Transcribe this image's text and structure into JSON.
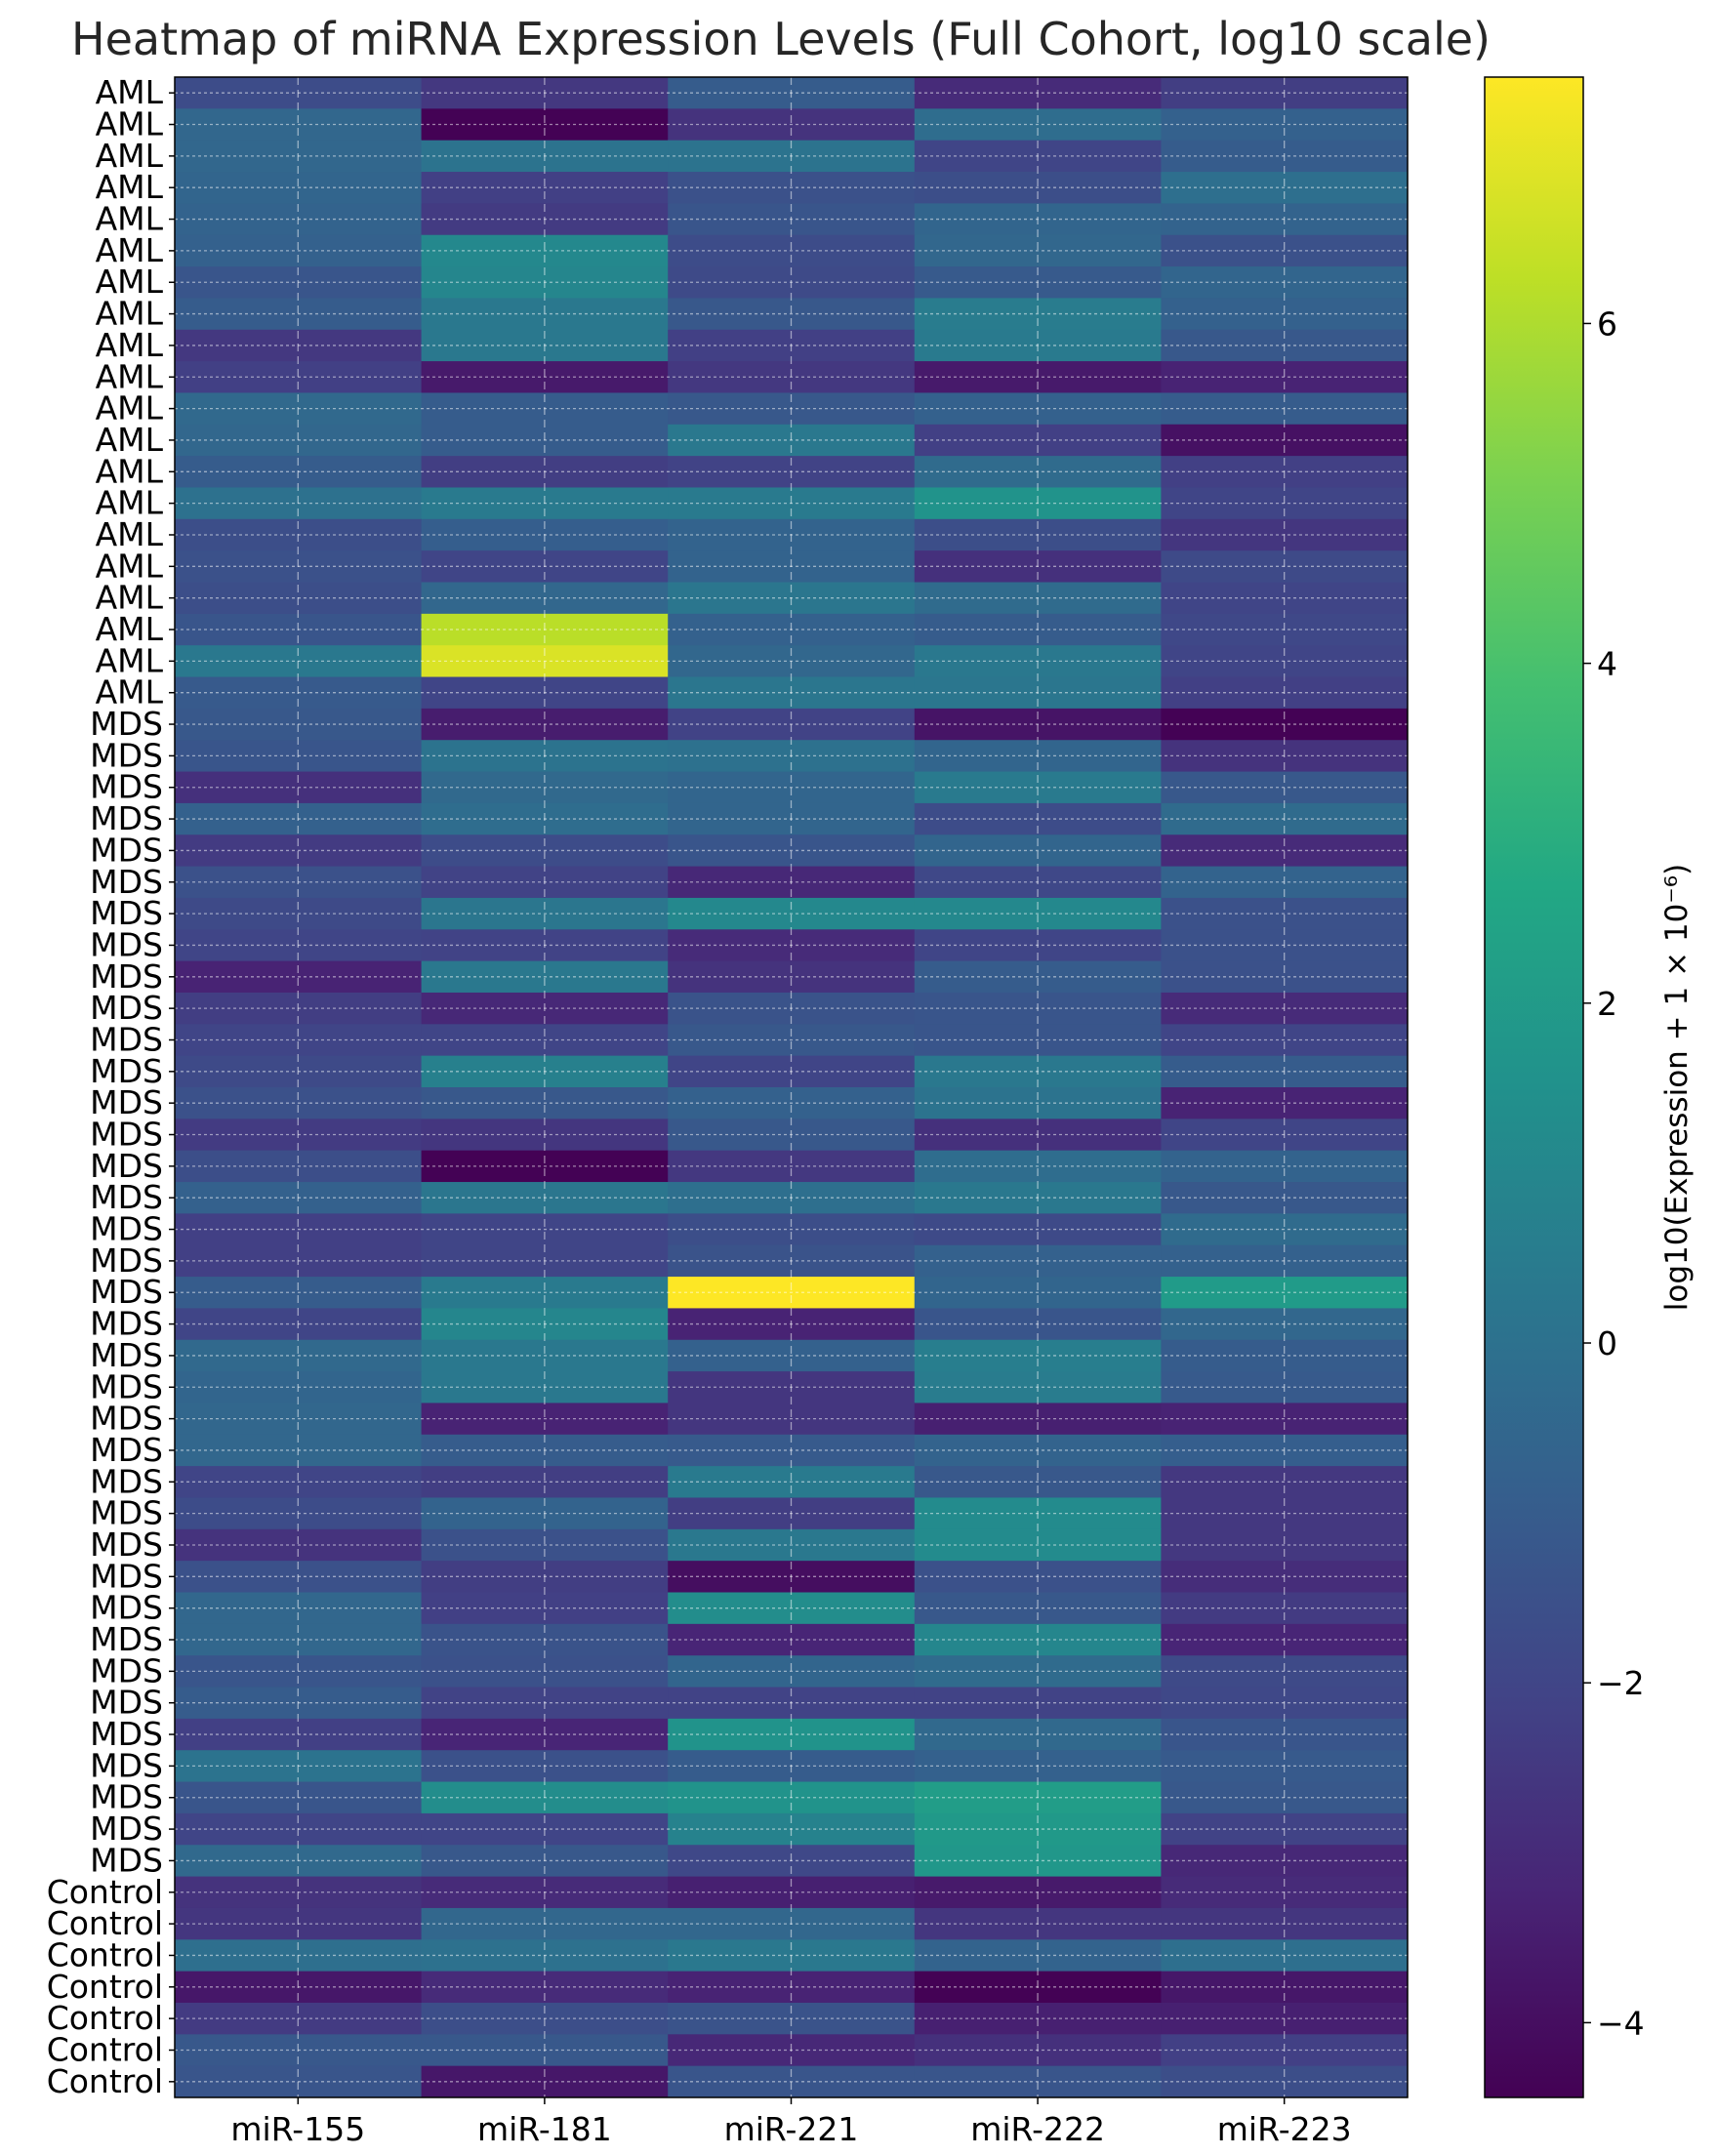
{
  "chart_data": {
    "type": "heatmap",
    "title": "Heatmap of miRNA Expression Levels (Full Cohort, log10 scale)",
    "xlabel": "",
    "ylabel": "",
    "columns": [
      "miR-155",
      "miR-181",
      "miR-221",
      "miR-222",
      "miR-223"
    ],
    "row_labels": [
      "AML",
      "AML",
      "AML",
      "AML",
      "AML",
      "AML",
      "AML",
      "AML",
      "AML",
      "AML",
      "AML",
      "AML",
      "AML",
      "AML",
      "AML",
      "AML",
      "AML",
      "AML",
      "AML",
      "AML",
      "MDS",
      "MDS",
      "MDS",
      "MDS",
      "MDS",
      "MDS",
      "MDS",
      "MDS",
      "MDS",
      "MDS",
      "MDS",
      "MDS",
      "MDS",
      "MDS",
      "MDS",
      "MDS",
      "MDS",
      "MDS",
      "MDS",
      "MDS",
      "MDS",
      "MDS",
      "MDS",
      "MDS",
      "MDS",
      "MDS",
      "MDS",
      "MDS",
      "MDS",
      "MDS",
      "MDS",
      "MDS",
      "MDS",
      "MDS",
      "MDS",
      "MDS",
      "MDS",
      "Control",
      "Control",
      "Control",
      "Control",
      "Control",
      "Control",
      "Control"
    ],
    "values": [
      [
        -1.7,
        -2.5,
        -1.0,
        -3.0,
        -2.3
      ],
      [
        -0.5,
        -4.4,
        -2.7,
        -0.2,
        -0.8
      ],
      [
        -0.5,
        0.1,
        0.1,
        -2.0,
        -1.0
      ],
      [
        -0.6,
        -2.2,
        -1.5,
        -1.6,
        -0.1
      ],
      [
        -0.7,
        -2.4,
        -1.3,
        -0.6,
        -0.7
      ],
      [
        -0.8,
        1.1,
        -1.7,
        -0.5,
        -1.5
      ],
      [
        -1.3,
        1.0,
        -1.8,
        -1.1,
        -0.6
      ],
      [
        -1.0,
        0.3,
        -1.2,
        0.5,
        -0.8
      ],
      [
        -2.5,
        0.3,
        -2.2,
        0.4,
        -1.2
      ],
      [
        -2.2,
        -3.6,
        -2.5,
        -3.6,
        -3.3
      ],
      [
        -0.4,
        -1.0,
        -1.2,
        -0.8,
        -1.0
      ],
      [
        -0.5,
        -1.0,
        0.3,
        -2.2,
        -3.9
      ],
      [
        -1.0,
        -2.3,
        -2.1,
        -0.3,
        -2.2
      ],
      [
        0.0,
        0.4,
        0.4,
        1.6,
        -2.0
      ],
      [
        -1.6,
        -0.9,
        -0.7,
        -1.6,
        -2.6
      ],
      [
        -1.5,
        -2.0,
        -0.7,
        -2.8,
        -1.8
      ],
      [
        -1.6,
        -0.5,
        0.2,
        -0.3,
        -2.0
      ],
      [
        -1.3,
        6.2,
        -0.8,
        -1.0,
        -1.9
      ],
      [
        0.3,
        6.8,
        -0.5,
        0.3,
        -2.0
      ],
      [
        -1.1,
        -2.0,
        0.2,
        0.2,
        -2.2
      ],
      [
        -1.2,
        -3.5,
        -2.1,
        -3.8,
        -4.4
      ],
      [
        -1.3,
        0.1,
        0.0,
        -0.6,
        -2.7
      ],
      [
        -2.8,
        -0.4,
        -0.6,
        0.4,
        -1.2
      ],
      [
        -0.8,
        -0.2,
        -0.6,
        -1.7,
        -0.3
      ],
      [
        -2.4,
        -1.7,
        -1.3,
        -0.6,
        -3.0
      ],
      [
        -1.5,
        -2.1,
        -3.1,
        -1.9,
        -0.7
      ],
      [
        -1.8,
        0.2,
        1.1,
        1.1,
        -1.5
      ],
      [
        -2.0,
        -2.1,
        -3.0,
        -2.0,
        -1.5
      ],
      [
        -3.3,
        0.3,
        -2.7,
        -1.0,
        -1.5
      ],
      [
        -2.3,
        -3.1,
        -1.4,
        -1.3,
        -3.0
      ],
      [
        -2.0,
        -2.0,
        -1.2,
        -1.3,
        -2.0
      ],
      [
        -1.8,
        0.7,
        -2.0,
        0.3,
        -1.0
      ],
      [
        -1.5,
        -1.2,
        -0.8,
        0.1,
        -3.3
      ],
      [
        -2.4,
        -2.6,
        -1.2,
        -2.8,
        -2.0
      ],
      [
        -1.6,
        -4.4,
        -2.5,
        -0.2,
        -0.7
      ],
      [
        -0.8,
        0.2,
        -0.1,
        0.3,
        -1.2
      ],
      [
        -2.2,
        -2.0,
        -1.6,
        -1.8,
        -0.3
      ],
      [
        -2.2,
        -2.0,
        -1.4,
        -0.8,
        -0.8
      ],
      [
        -1.0,
        0.4,
        7.45,
        -0.6,
        2.0
      ],
      [
        -2.0,
        1.0,
        -3.3,
        -1.3,
        -0.5
      ],
      [
        -0.4,
        0.3,
        -0.8,
        0.6,
        -1.0
      ],
      [
        -0.6,
        0.3,
        -2.6,
        0.5,
        -1.1
      ],
      [
        -0.5,
        -3.3,
        -2.6,
        -3.4,
        -3.3
      ],
      [
        -0.5,
        -1.0,
        -1.1,
        -0.7,
        -0.9
      ],
      [
        -2.0,
        -2.3,
        0.4,
        -1.2,
        -2.5
      ],
      [
        -1.7,
        -0.7,
        -2.3,
        1.2,
        -2.5
      ],
      [
        -2.7,
        -1.5,
        0.3,
        1.2,
        -2.5
      ],
      [
        -1.5,
        -2.3,
        -4.0,
        -1.5,
        -2.9
      ],
      [
        -0.5,
        -2.2,
        1.3,
        -1.2,
        -2.4
      ],
      [
        -0.5,
        -1.4,
        -3.2,
        1.0,
        -3.2
      ],
      [
        -1.3,
        -1.5,
        -0.6,
        -0.3,
        -1.8
      ],
      [
        -1.0,
        -2.1,
        -2.1,
        -2.1,
        -1.9
      ],
      [
        -2.2,
        -3.2,
        1.6,
        -0.4,
        -1.3
      ],
      [
        0.1,
        -1.5,
        -1.0,
        -0.8,
        -1.1
      ],
      [
        -1.3,
        1.3,
        1.6,
        2.1,
        -1.2
      ],
      [
        -2.0,
        -2.0,
        0.8,
        1.9,
        -2.1
      ],
      [
        -0.4,
        -1.2,
        -1.9,
        1.8,
        -3.1
      ],
      [
        -2.7,
        -3.0,
        -3.4,
        -3.6,
        -3.0
      ],
      [
        -2.6,
        -0.5,
        -0.5,
        -2.6,
        -2.6
      ],
      [
        -0.1,
        0.0,
        0.3,
        -0.7,
        -0.1
      ],
      [
        -3.7,
        -3.0,
        -3.3,
        -4.4,
        -3.7
      ],
      [
        -2.4,
        -1.6,
        -1.4,
        -3.4,
        -3.4
      ],
      [
        -1.2,
        -1.2,
        -3.1,
        -2.8,
        -2.2
      ],
      [
        -1.3,
        -3.7,
        -1.3,
        -1.3,
        -1.6
      ]
    ],
    "colormap": "viridis",
    "color_range": [
      -4.44,
      7.45
    ],
    "colorbar": {
      "label": "log10(Expression + 1 × 10⁻⁶)",
      "ticks": [
        -4,
        -2,
        0,
        2,
        4,
        6
      ],
      "tick_labels": [
        "−4",
        "−2",
        "0",
        "2",
        "4",
        "6"
      ]
    },
    "grid": true
  }
}
